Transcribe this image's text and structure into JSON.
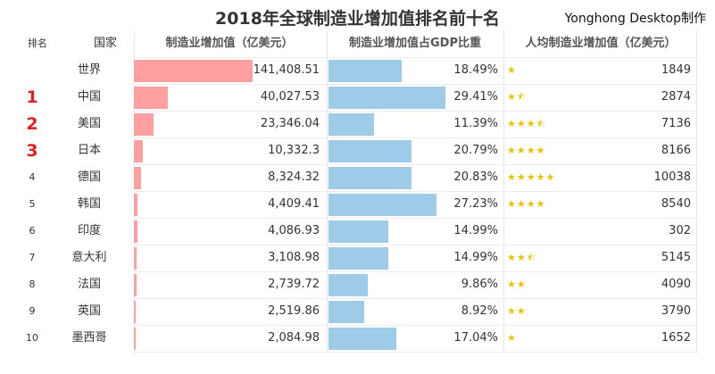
{
  "title": "2018年全球制造业增加值排名前十名",
  "credit": "Yonghong Desktop制作",
  "colors": {
    "bar1": "#ff9f9f",
    "bar2": "#9ecbe8",
    "star": "#e8c400",
    "top_rank": "#e02020"
  },
  "headers": {
    "rank": "排名",
    "country": "国家",
    "col1": "制造业增加值（亿美元）",
    "col2": "制造业增加值占GDP比重",
    "col3": "人均制造业增加值（亿美元）"
  },
  "chart_data": {
    "type": "table",
    "title": "2018年全球制造业增加值排名前十名",
    "columns": [
      "排名",
      "国家",
      "制造业增加值（亿美元）",
      "制造业增加值占GDP比重",
      "人均制造业增加值（亿美元）"
    ],
    "rows": [
      {
        "rank": "",
        "country": "世界",
        "value": "141,408.51",
        "value_num": 141408.51,
        "share": "18.49%",
        "share_num": 18.49,
        "per_capita": "1849",
        "stars": 1
      },
      {
        "rank": "1",
        "country": "中国",
        "value": "40,027.53",
        "value_num": 40027.53,
        "share": "29.41%",
        "share_num": 29.41,
        "per_capita": "2874",
        "stars": 1.5
      },
      {
        "rank": "2",
        "country": "美国",
        "value": "23,346.04",
        "value_num": 23346.04,
        "share": "11.39%",
        "share_num": 11.39,
        "per_capita": "7136",
        "stars": 3.5
      },
      {
        "rank": "3",
        "country": "日本",
        "value": "10,332.3",
        "value_num": 10332.3,
        "share": "20.79%",
        "share_num": 20.79,
        "per_capita": "8166",
        "stars": 4
      },
      {
        "rank": "4",
        "country": "德国",
        "value": "8,324.32",
        "value_num": 8324.32,
        "share": "20.83%",
        "share_num": 20.83,
        "per_capita": "10038",
        "stars": 5
      },
      {
        "rank": "5",
        "country": "韩国",
        "value": "4,409.41",
        "value_num": 4409.41,
        "share": "27.23%",
        "share_num": 27.23,
        "per_capita": "8540",
        "stars": 4
      },
      {
        "rank": "6",
        "country": "印度",
        "value": "4,086.93",
        "value_num": 4086.93,
        "share": "14.99%",
        "share_num": 14.99,
        "per_capita": "302",
        "stars": 0
      },
      {
        "rank": "7",
        "country": "意大利",
        "value": "3,108.98",
        "value_num": 3108.98,
        "share": "14.99%",
        "share_num": 14.99,
        "per_capita": "5145",
        "stars": 2.5
      },
      {
        "rank": "8",
        "country": "法国",
        "value": "2,739.72",
        "value_num": 2739.72,
        "share": "9.86%",
        "share_num": 9.86,
        "per_capita": "4090",
        "stars": 2
      },
      {
        "rank": "9",
        "country": "英国",
        "value": "2,519.86",
        "value_num": 2519.86,
        "share": "8.92%",
        "share_num": 8.92,
        "per_capita": "3790",
        "stars": 2
      },
      {
        "rank": "10",
        "country": "墨西哥",
        "value": "2,084.98",
        "value_num": 2084.98,
        "share": "17.04%",
        "share_num": 17.04,
        "per_capita": "1652",
        "stars": 1
      }
    ]
  }
}
